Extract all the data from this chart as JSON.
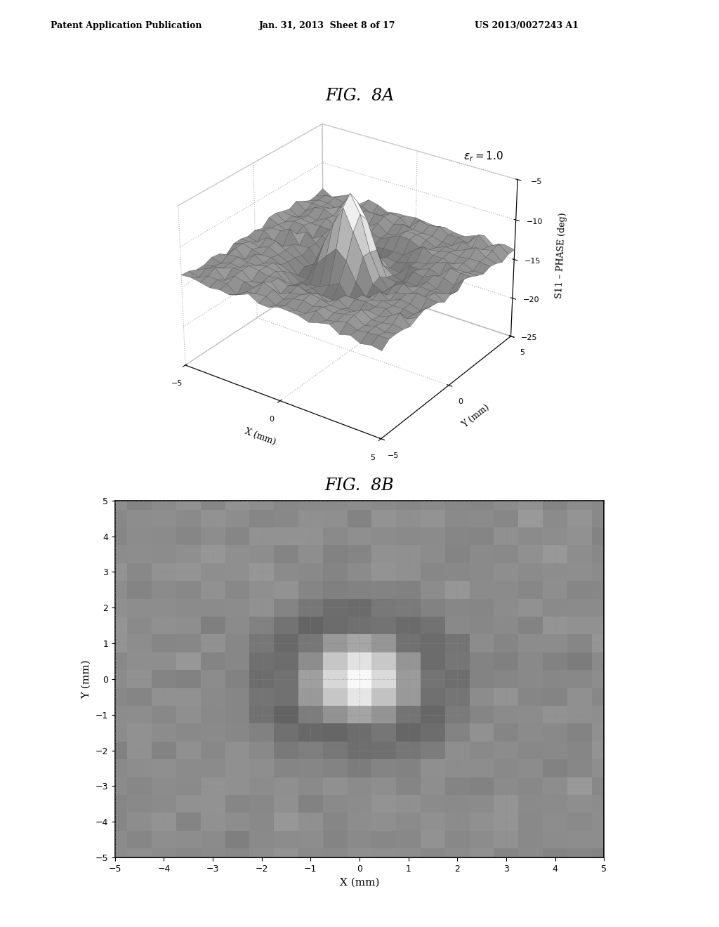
{
  "title_8a": "FIG.  8A",
  "title_8b": "FIG.  8B",
  "patent_header": "Patent Application Publication",
  "patent_date": "Jan. 31, 2013  Sheet 8 of 17",
  "patent_number": "US 2013/0027243 A1",
  "fig8a": {
    "xlabel": "X (mm)",
    "ylabel": "Y (mm)",
    "zlabel": "S11 – PHASE (deg)",
    "annotation": "εr = 1.0",
    "x_ticks": [
      -5,
      0,
      5
    ],
    "y_ticks": [
      -5,
      0,
      5
    ],
    "z_ticks": [
      -25,
      -20,
      -15,
      -10,
      -5
    ]
  },
  "fig8b": {
    "xlabel": "X (mm)",
    "ylabel": "Y (mm)",
    "x_ticks": [
      -5,
      -4,
      -3,
      -2,
      -1,
      0,
      1,
      2,
      3,
      4,
      5
    ],
    "y_ticks": [
      -5,
      -4,
      -3,
      -2,
      -1,
      0,
      1,
      2,
      3,
      4,
      5
    ]
  },
  "background_color": "#ffffff"
}
